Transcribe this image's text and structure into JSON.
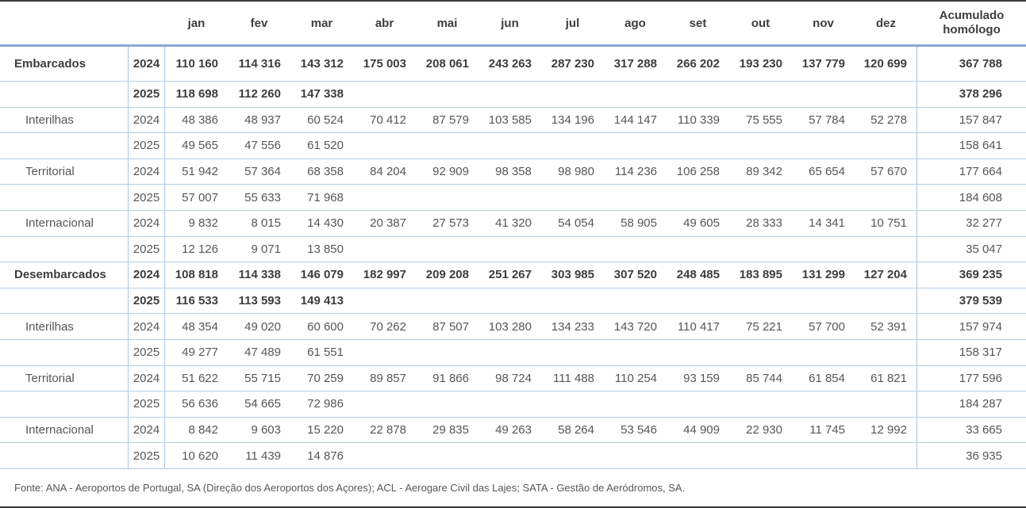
{
  "style": {
    "thick_rule_color": "#8ca8d2",
    "thin_rule_color": "#b7cce0",
    "vertical_rule_color": "#a7c5e4",
    "page_rule_color": "#3a3a3a",
    "bold_text_color": "#3d3d3d",
    "regular_text_color": "#565656"
  },
  "table": {
    "months": [
      "jan",
      "fev",
      "mar",
      "abr",
      "mai",
      "jun",
      "jul",
      "ago",
      "set",
      "out",
      "nov",
      "dez"
    ],
    "accumulated_header_line1": "Acumulado",
    "accumulated_header_line2": "homólogo",
    "rows": [
      {
        "category": "Embarcados",
        "indent": false,
        "bold": true,
        "tall": true,
        "year": "2024",
        "values": [
          "110 160",
          "114 316",
          "143 312",
          "175 003",
          "208 061",
          "243 263",
          "287 230",
          "317 288",
          "266 202",
          "193 230",
          "137 779",
          "120 699"
        ],
        "accumulated": "367 788"
      },
      {
        "category": "",
        "indent": false,
        "bold": true,
        "tall": false,
        "year": "2025",
        "values": [
          "118 698",
          "112 260",
          "147 338",
          "",
          "",
          "",
          "",
          "",
          "",
          "",
          "",
          ""
        ],
        "accumulated": "378 296"
      },
      {
        "category": "Interilhas",
        "indent": true,
        "bold": false,
        "tall": false,
        "year": "2024",
        "values": [
          "48 386",
          "48 937",
          "60 524",
          "70 412",
          "87 579",
          "103 585",
          "134 196",
          "144 147",
          "110 339",
          "75 555",
          "57 784",
          "52 278"
        ],
        "accumulated": "157 847"
      },
      {
        "category": "",
        "indent": true,
        "bold": false,
        "tall": false,
        "year": "2025",
        "values": [
          "49 565",
          "47 556",
          "61 520",
          "",
          "",
          "",
          "",
          "",
          "",
          "",
          "",
          ""
        ],
        "accumulated": "158 641"
      },
      {
        "category": "Territorial",
        "indent": true,
        "bold": false,
        "tall": false,
        "year": "2024",
        "values": [
          "51 942",
          "57 364",
          "68 358",
          "84 204",
          "92 909",
          "98 358",
          "98 980",
          "114 236",
          "106 258",
          "89 342",
          "65 654",
          "57 670"
        ],
        "accumulated": "177 664"
      },
      {
        "category": "",
        "indent": true,
        "bold": false,
        "tall": false,
        "year": "2025",
        "values": [
          "57 007",
          "55 633",
          "71 968",
          "",
          "",
          "",
          "",
          "",
          "",
          "",
          "",
          ""
        ],
        "accumulated": "184 608"
      },
      {
        "category": "Internacional",
        "indent": true,
        "bold": false,
        "tall": false,
        "year": "2024",
        "values": [
          "9 832",
          "8 015",
          "14 430",
          "20 387",
          "27 573",
          "41 320",
          "54 054",
          "58 905",
          "49 605",
          "28 333",
          "14 341",
          "10 751"
        ],
        "accumulated": "32 277"
      },
      {
        "category": "",
        "indent": true,
        "bold": false,
        "tall": false,
        "year": "2025",
        "values": [
          "12 126",
          "9 071",
          "13 850",
          "",
          "",
          "",
          "",
          "",
          "",
          "",
          "",
          ""
        ],
        "accumulated": "35 047"
      },
      {
        "category": "Desembarcados",
        "indent": false,
        "bold": true,
        "tall": false,
        "year": "2024",
        "values": [
          "108 818",
          "114 338",
          "146 079",
          "182 997",
          "209 208",
          "251 267",
          "303 985",
          "307 520",
          "248 485",
          "183 895",
          "131 299",
          "127 204"
        ],
        "accumulated": "369 235"
      },
      {
        "category": "",
        "indent": false,
        "bold": true,
        "tall": false,
        "year": "2025",
        "values": [
          "116 533",
          "113 593",
          "149 413",
          "",
          "",
          "",
          "",
          "",
          "",
          "",
          "",
          ""
        ],
        "accumulated": "379 539"
      },
      {
        "category": "Interilhas",
        "indent": true,
        "bold": false,
        "tall": false,
        "year": "2024",
        "values": [
          "48 354",
          "49 020",
          "60 600",
          "70 262",
          "87 507",
          "103 280",
          "134 233",
          "143 720",
          "110 417",
          "75 221",
          "57 700",
          "52 391"
        ],
        "accumulated": "157 974"
      },
      {
        "category": "",
        "indent": true,
        "bold": false,
        "tall": false,
        "year": "2025",
        "values": [
          "49 277",
          "47 489",
          "61 551",
          "",
          "",
          "",
          "",
          "",
          "",
          "",
          "",
          ""
        ],
        "accumulated": "158 317"
      },
      {
        "category": "Territorial",
        "indent": true,
        "bold": false,
        "tall": false,
        "year": "2024",
        "values": [
          "51 622",
          "55 715",
          "70 259",
          "89 857",
          "91 866",
          "98 724",
          "111 488",
          "110 254",
          "93 159",
          "85 744",
          "61 854",
          "61 821"
        ],
        "accumulated": "177 596"
      },
      {
        "category": "",
        "indent": true,
        "bold": false,
        "tall": false,
        "year": "2025",
        "values": [
          "56 636",
          "54 665",
          "72 986",
          "",
          "",
          "",
          "",
          "",
          "",
          "",
          "",
          ""
        ],
        "accumulated": "184 287"
      },
      {
        "category": "Internacional",
        "indent": true,
        "bold": false,
        "tall": false,
        "year": "2024",
        "values": [
          "8 842",
          "9 603",
          "15 220",
          "22 878",
          "29 835",
          "49 263",
          "58 264",
          "53 546",
          "44 909",
          "22 930",
          "11 745",
          "12 992"
        ],
        "accumulated": "33 665"
      },
      {
        "category": "",
        "indent": true,
        "bold": false,
        "tall": false,
        "year": "2025",
        "values": [
          "10 620",
          "11 439",
          "14 876",
          "",
          "",
          "",
          "",
          "",
          "",
          "",
          "",
          ""
        ],
        "accumulated": "36 935"
      }
    ]
  },
  "footer": {
    "source": "Fonte: ANA - Aeroportos de Portugal, SA (Direção dos Aeroportos dos Açores); ACL - Aerogare Civil das Lajes; SATA - Gestão de Aeródromos, SA."
  }
}
